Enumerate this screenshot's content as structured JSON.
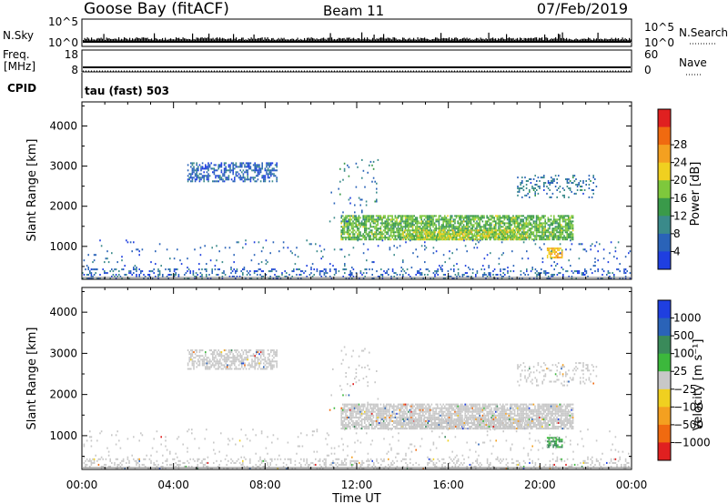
{
  "header": {
    "station": "Goose Bay (fitACF)",
    "beam": "Beam 11",
    "date": "07/Feb/2019"
  },
  "top_panels": {
    "nsky_label": "N.Sky",
    "nsearch_label": "N.Search",
    "nsky_ticks": [
      "10^5",
      "10^0"
    ],
    "nsearch_ticks": [
      "10^5",
      "10^0"
    ],
    "freq_label": "Freq.",
    "freq_unit": "[MHz]",
    "freq_ticks": [
      "18",
      "8"
    ],
    "nave_label": "Nave",
    "nave_ticks": [
      "60",
      "0"
    ],
    "cpid_label": "CPID",
    "cpid_value": "tau (fast) 503"
  },
  "chart_data": [
    {
      "type": "heatmap",
      "panel": "power",
      "xlabel": "",
      "ylabel": "Slant Range [km]",
      "x_ticks": [
        "00:00",
        "04:00",
        "08:00",
        "12:00",
        "16:00",
        "20:00",
        "00:00"
      ],
      "xlim_hours": [
        0,
        24
      ],
      "y_ticks": [
        1000,
        2000,
        3000,
        4000
      ],
      "ylim": [
        180,
        4600
      ],
      "colorbar": {
        "label": "Power [dB]",
        "ticks": [
          "4",
          "8",
          "12",
          "16",
          "20",
          "24",
          "28"
        ],
        "colors": [
          "#1f3fe0",
          "#2a63b8",
          "#3a8a8a",
          "#3a9a4a",
          "#7ec83c",
          "#f0d020",
          "#f4a020",
          "#f06a10",
          "#e02020"
        ]
      },
      "regions": [
        {
          "hours": [
            4.6,
            8.6
          ],
          "range_km": [
            2600,
            3100
          ],
          "level": 8,
          "density": 0.55
        },
        {
          "hours": [
            11.3,
            21.5
          ],
          "range_km": [
            1150,
            1800
          ],
          "level": 18,
          "density": 0.75
        },
        {
          "hours": [
            14.0,
            19.5
          ],
          "range_km": [
            1150,
            1450
          ],
          "level": 22,
          "density": 0.6
        },
        {
          "hours": [
            10.8,
            13.0
          ],
          "range_km": [
            1600,
            3200
          ],
          "level": 10,
          "density": 0.05
        },
        {
          "hours": [
            19.0,
            22.5
          ],
          "range_km": [
            2200,
            2800
          ],
          "level": 10,
          "density": 0.2
        },
        {
          "hours": [
            20.3,
            21.0
          ],
          "range_km": [
            700,
            1000
          ],
          "level": 26,
          "density": 0.7
        },
        {
          "hours": [
            0.0,
            24.0
          ],
          "range_km": [
            180,
            450
          ],
          "level": 8,
          "density": 0.25
        },
        {
          "hours": [
            0.0,
            24.0
          ],
          "range_km": [
            450,
            1200
          ],
          "level": 8,
          "density": 0.04
        }
      ]
    },
    {
      "type": "heatmap",
      "panel": "velocity",
      "xlabel": "Time UT",
      "ylabel": "Slant Range [km]",
      "x_ticks": [
        "00:00",
        "04:00",
        "08:00",
        "12:00",
        "16:00",
        "20:00",
        "00:00"
      ],
      "xlim_hours": [
        0,
        24
      ],
      "y_ticks": [
        1000,
        2000,
        3000,
        4000
      ],
      "ylim": [
        180,
        4600
      ],
      "colorbar": {
        "label": "Velocity [m s⁻¹]",
        "ticks": [
          "1000",
          "500",
          "100",
          "25",
          "−25",
          "−100",
          "−500",
          "−1000"
        ],
        "colors": [
          "#1f3fe0",
          "#2a63b8",
          "#3a8a5a",
          "#3cb83c",
          "#c8c8c8",
          "#f0d020",
          "#f4a020",
          "#f06a10",
          "#e02020"
        ]
      },
      "regions": [
        {
          "hours": [
            4.6,
            8.6
          ],
          "range_km": [
            2600,
            3100
          ],
          "level": 0,
          "density": 0.55
        },
        {
          "hours": [
            11.3,
            21.5
          ],
          "range_km": [
            1150,
            1800
          ],
          "level": 0,
          "density": 0.75
        },
        {
          "hours": [
            14.0,
            19.5
          ],
          "range_km": [
            1150,
            1450
          ],
          "level": 0,
          "density": 0.6
        },
        {
          "hours": [
            10.8,
            13.0
          ],
          "range_km": [
            1600,
            3200
          ],
          "level": 0,
          "density": 0.05
        },
        {
          "hours": [
            19.0,
            22.5
          ],
          "range_km": [
            2200,
            2800
          ],
          "level": 0,
          "density": 0.2
        },
        {
          "hours": [
            20.3,
            21.0
          ],
          "range_km": [
            700,
            1000
          ],
          "level": 80,
          "density": 0.7
        },
        {
          "hours": [
            0.0,
            24.0
          ],
          "range_km": [
            180,
            450
          ],
          "level": 0,
          "density": 0.25
        },
        {
          "hours": [
            0.0,
            24.0
          ],
          "range_km": [
            450,
            1200
          ],
          "level": 0,
          "density": 0.04
        }
      ]
    }
  ]
}
